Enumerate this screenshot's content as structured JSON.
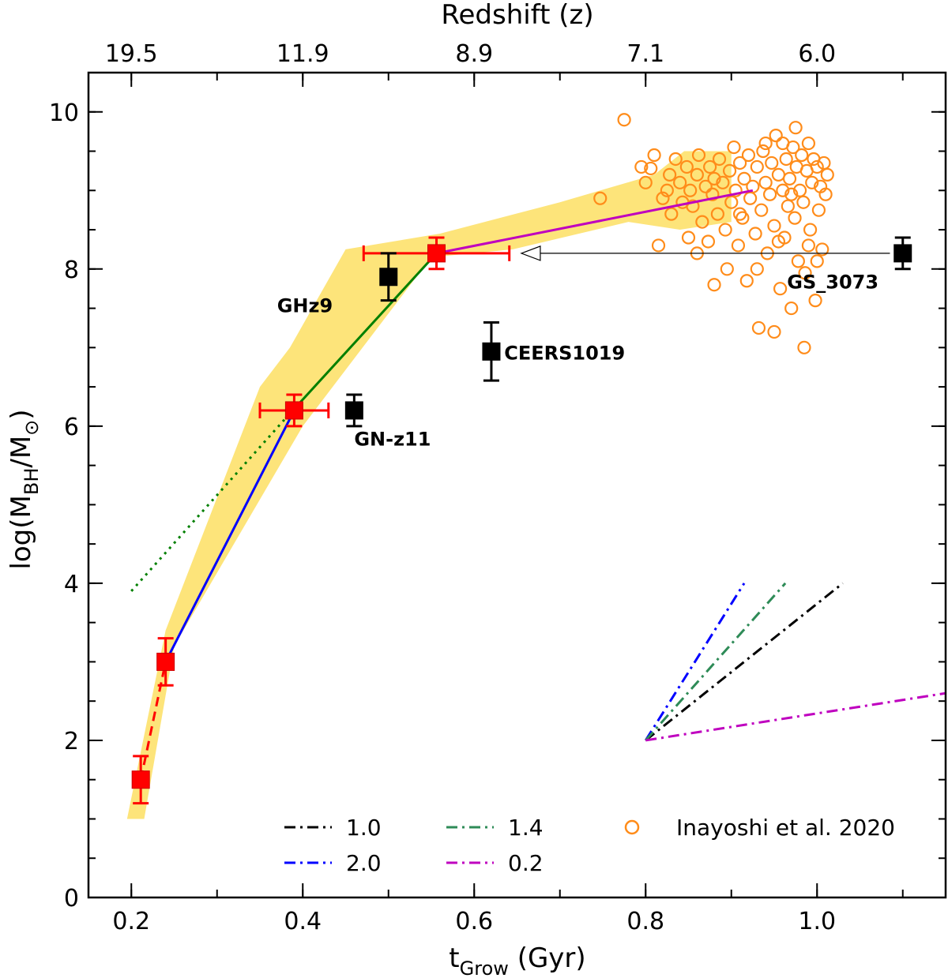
{
  "chart_data": {
    "type": "scatter",
    "title": "",
    "xlabel": "t",
    "xlabel_sub": "Grow",
    "xlabel_unit": " (Gyr)",
    "ylabel_pre": "log(M",
    "ylabel_sub1": "BH",
    "ylabel_mid": "/M",
    "ylabel_sub2": "⊙",
    "ylabel_post": ")",
    "top_axis_label": "Redshift (z)",
    "xlim": [
      0.15,
      1.15
    ],
    "ylim": [
      0,
      10.5
    ],
    "x_ticks": [
      {
        "value": 0.2,
        "label": "0.2"
      },
      {
        "value": 0.4,
        "label": "0.4"
      },
      {
        "value": 0.6,
        "label": "0.6"
      },
      {
        "value": 0.8,
        "label": "0.8"
      },
      {
        "value": 1.0,
        "label": "1.0"
      }
    ],
    "y_ticks": [
      {
        "value": 0,
        "label": "0"
      },
      {
        "value": 2,
        "label": "2"
      },
      {
        "value": 4,
        "label": "4"
      },
      {
        "value": 6,
        "label": "6"
      },
      {
        "value": 8,
        "label": "8"
      },
      {
        "value": 10,
        "label": "10"
      }
    ],
    "top_ticks": [
      {
        "value": 0.2,
        "label": "19.5"
      },
      {
        "value": 0.4,
        "label": "11.9"
      },
      {
        "value": 0.6,
        "label": "8.9"
      },
      {
        "value": 0.8,
        "label": "7.1"
      },
      {
        "value": 1.0,
        "label": "6.0"
      }
    ],
    "band": {
      "color": "#fde47a",
      "upper": [
        [
          0.195,
          1.0
        ],
        [
          0.24,
          3.4
        ],
        [
          0.35,
          6.5
        ],
        [
          0.385,
          7.0
        ],
        [
          0.45,
          8.25
        ],
        [
          0.56,
          8.45
        ],
        [
          0.7,
          8.85
        ],
        [
          0.81,
          9.2
        ],
        [
          0.845,
          9.5
        ],
        [
          0.9,
          9.5
        ]
      ],
      "lower": [
        [
          0.215,
          1.0
        ],
        [
          0.25,
          3.2
        ],
        [
          0.4,
          6.0
        ],
        [
          0.55,
          8.15
        ],
        [
          0.645,
          8.25
        ],
        [
          0.78,
          8.6
        ],
        [
          0.84,
          8.5
        ],
        [
          0.9,
          8.6
        ]
      ]
    },
    "lines": [
      {
        "name": "red-dashed",
        "color": "#ff0000",
        "style": "dashed",
        "points": [
          [
            0.211,
            1.5
          ],
          [
            0.24,
            3.0
          ]
        ]
      },
      {
        "name": "green-dotted",
        "color": "#007f00",
        "style": "dotted",
        "points": [
          [
            0.2,
            3.9
          ],
          [
            0.38,
            6.1
          ]
        ]
      },
      {
        "name": "blue-solid",
        "color": "#0000ff",
        "style": "solid",
        "points": [
          [
            0.24,
            3.0
          ],
          [
            0.39,
            6.2
          ]
        ]
      },
      {
        "name": "green-solid",
        "color": "#007f00",
        "style": "solid",
        "points": [
          [
            0.38,
            6.1
          ],
          [
            0.556,
            8.2
          ]
        ]
      },
      {
        "name": "magenta-solid",
        "color": "#bf00bf",
        "style": "solid",
        "points": [
          [
            0.556,
            8.2
          ],
          [
            0.925,
            9.0
          ]
        ]
      }
    ],
    "red_points": [
      {
        "x": 0.211,
        "y": 1.5,
        "yerr": 0.3,
        "xerr": 0.0
      },
      {
        "x": 0.24,
        "y": 3.0,
        "yerr": 0.3,
        "xerr": 0.0
      },
      {
        "x": 0.39,
        "y": 6.2,
        "yerr": 0.2,
        "xerr": 0.04
      },
      {
        "x": 0.556,
        "y": 8.2,
        "yerr": 0.2,
        "xerr": 0.085
      }
    ],
    "black_points": [
      {
        "name": "GHz9",
        "x": 0.5,
        "y": 7.9,
        "yerr": 0.3
      },
      {
        "name": "CEERS1019",
        "x": 0.62,
        "y": 6.95,
        "yerr": 0.37
      },
      {
        "name": "GN-z11",
        "x": 0.46,
        "y": 6.2,
        "yerr": 0.2
      },
      {
        "name": "GS_3073",
        "x": 1.1,
        "y": 8.2,
        "yerr": 0.2
      }
    ],
    "labels": [
      {
        "text": "GHz9",
        "x": 0.37,
        "y": 7.45
      },
      {
        "text": "CEERS1019",
        "x": 0.635,
        "y": 6.85
      },
      {
        "text": "GN-z11",
        "x": 0.46,
        "y": 5.75
      },
      {
        "text": "GS_3073",
        "x": 0.965,
        "y": 7.75
      }
    ],
    "arrow": {
      "from": [
        1.085,
        8.2
      ],
      "to": [
        0.655,
        8.2
      ]
    },
    "slope_lines": [
      {
        "label": "1.0",
        "color": "#000000",
        "from": [
          0.8,
          2.0
        ],
        "to": [
          1.03,
          4.0
        ]
      },
      {
        "label": "2.0",
        "color": "#0000ff",
        "from": [
          0.8,
          2.0
        ],
        "to": [
          0.915,
          4.0
        ]
      },
      {
        "label": "1.4",
        "color": "#2e8b57",
        "from": [
          0.8,
          2.0
        ],
        "to": [
          0.963,
          4.0
        ]
      },
      {
        "label": "0.2",
        "color": "#bf00bf",
        "from": [
          0.8,
          2.0
        ],
        "to": [
          1.15,
          2.6
        ]
      }
    ],
    "legend": {
      "placement": "bottom-right",
      "entries": [
        {
          "label": "1.0",
          "color": "#000000",
          "kind": "dashdot"
        },
        {
          "label": "1.4",
          "color": "#2e8b57",
          "kind": "dashdot"
        },
        {
          "label": "Inayoshi et al. 2020",
          "color": "#ff8c1a",
          "kind": "circle"
        },
        {
          "label": "2.0",
          "color": "#0000ff",
          "kind": "dashdot"
        },
        {
          "label": "0.2",
          "color": "#bf00bf",
          "kind": "dashdot"
        }
      ]
    },
    "inayoshi_points": [
      [
        0.747,
        8.9
      ],
      [
        0.775,
        9.9
      ],
      [
        0.795,
        9.3
      ],
      [
        0.8,
        9.1
      ],
      [
        0.806,
        9.28
      ],
      [
        0.81,
        9.45
      ],
      [
        0.815,
        8.3
      ],
      [
        0.82,
        8.9
      ],
      [
        0.825,
        9.0
      ],
      [
        0.828,
        9.2
      ],
      [
        0.83,
        8.7
      ],
      [
        0.835,
        9.4
      ],
      [
        0.84,
        9.1
      ],
      [
        0.843,
        8.85
      ],
      [
        0.848,
        9.3
      ],
      [
        0.85,
        8.4
      ],
      [
        0.852,
        9.0
      ],
      [
        0.855,
        8.8
      ],
      [
        0.86,
        9.2
      ],
      [
        0.862,
        9.45
      ],
      [
        0.866,
        8.6
      ],
      [
        0.87,
        9.05
      ],
      [
        0.873,
        8.35
      ],
      [
        0.875,
        9.3
      ],
      [
        0.878,
        8.95
      ],
      [
        0.88,
        9.15
      ],
      [
        0.884,
        8.7
      ],
      [
        0.886,
        9.4
      ],
      [
        0.89,
        9.1
      ],
      [
        0.893,
        8.5
      ],
      [
        0.895,
        8.0
      ],
      [
        0.898,
        9.25
      ],
      [
        0.9,
        8.85
      ],
      [
        0.903,
        9.55
      ],
      [
        0.905,
        9.0
      ],
      [
        0.908,
        8.3
      ],
      [
        0.91,
        9.35
      ],
      [
        0.913,
        8.65
      ],
      [
        0.915,
        9.15
      ],
      [
        0.918,
        7.85
      ],
      [
        0.92,
        9.45
      ],
      [
        0.922,
        8.9
      ],
      [
        0.925,
        9.05
      ],
      [
        0.928,
        8.45
      ],
      [
        0.93,
        9.3
      ],
      [
        0.932,
        7.25
      ],
      [
        0.935,
        8.75
      ],
      [
        0.937,
        9.5
      ],
      [
        0.94,
        9.1
      ],
      [
        0.942,
        8.2
      ],
      [
        0.945,
        8.95
      ],
      [
        0.947,
        9.35
      ],
      [
        0.95,
        8.55
      ],
      [
        0.952,
        9.7
      ],
      [
        0.955,
        9.2
      ],
      [
        0.957,
        7.75
      ],
      [
        0.96,
        9.0
      ],
      [
        0.962,
        8.4
      ],
      [
        0.964,
        9.4
      ],
      [
        0.966,
        8.8
      ],
      [
        0.968,
        9.15
      ],
      [
        0.97,
        7.5
      ],
      [
        0.972,
        9.55
      ],
      [
        0.974,
        8.65
      ],
      [
        0.976,
        9.3
      ],
      [
        0.978,
        8.1
      ],
      [
        0.98,
        9.0
      ],
      [
        0.982,
        9.45
      ],
      [
        0.984,
        8.85
      ],
      [
        0.986,
        7.95
      ],
      [
        0.988,
        9.25
      ],
      [
        0.99,
        9.6
      ],
      [
        0.992,
        8.5
      ],
      [
        0.994,
        9.1
      ],
      [
        0.996,
        9.4
      ],
      [
        0.998,
        7.6
      ],
      [
        1.0,
        9.3
      ],
      [
        1.002,
        8.75
      ],
      [
        1.004,
        9.05
      ],
      [
        1.006,
        8.25
      ],
      [
        1.008,
        9.35
      ],
      [
        1.01,
        8.95
      ],
      [
        1.012,
        9.2
      ],
      [
        0.985,
        7.0
      ],
      [
        0.95,
        7.2
      ],
      [
        0.975,
        9.8
      ],
      [
        0.96,
        9.6
      ],
      [
        0.93,
        8.0
      ],
      [
        0.88,
        7.8
      ],
      [
        0.86,
        8.2
      ],
      [
        0.91,
        8.7
      ],
      [
        0.94,
        9.6
      ],
      [
        0.99,
        8.3
      ],
      [
        1.0,
        8.1
      ],
      [
        0.97,
        8.95
      ],
      [
        0.955,
        8.35
      ]
    ]
  }
}
